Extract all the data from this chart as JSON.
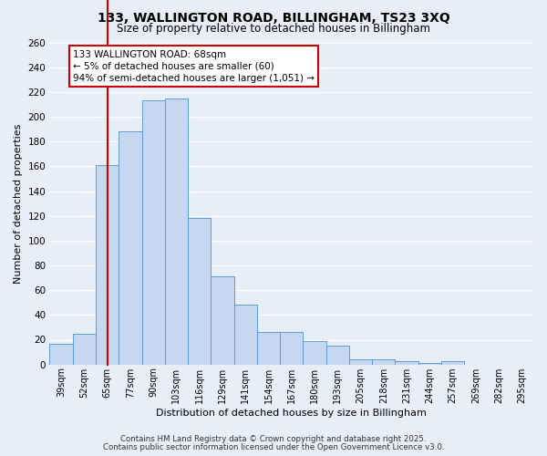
{
  "title": "133, WALLINGTON ROAD, BILLINGHAM, TS23 3XQ",
  "subtitle": "Size of property relative to detached houses in Billingham",
  "xlabel": "Distribution of detached houses by size in Billingham",
  "ylabel": "Number of detached properties",
  "bar_labels": [
    "39sqm",
    "52sqm",
    "65sqm",
    "77sqm",
    "90sqm",
    "103sqm",
    "116sqm",
    "129sqm",
    "141sqm",
    "154sqm",
    "167sqm",
    "180sqm",
    "193sqm",
    "205sqm",
    "218sqm",
    "231sqm",
    "244sqm",
    "257sqm",
    "269sqm",
    "282sqm",
    "295sqm"
  ],
  "bar_values": [
    17,
    25,
    161,
    188,
    213,
    215,
    118,
    71,
    48,
    26,
    26,
    19,
    15,
    4,
    4,
    3,
    1,
    3,
    0,
    0,
    0
  ],
  "bar_color": "#c5d8f0",
  "bar_edge_color": "#5b9bd5",
  "vline_x_index": 2,
  "vline_color": "#cc0000",
  "ylim": [
    0,
    260
  ],
  "yticks": [
    0,
    20,
    40,
    60,
    80,
    100,
    120,
    140,
    160,
    180,
    200,
    220,
    240,
    260
  ],
  "annotation_title": "133 WALLINGTON ROAD: 68sqm",
  "annotation_line1": "← 5% of detached houses are smaller (60)",
  "annotation_line2": "94% of semi-detached houses are larger (1,051) →",
  "annotation_box_color": "#ffffff",
  "annotation_box_edge": "#cc0000",
  "bg_color": "#e8eef7",
  "grid_color": "#ffffff",
  "footer1": "Contains HM Land Registry data © Crown copyright and database right 2025.",
  "footer2": "Contains public sector information licensed under the Open Government Licence v3.0."
}
